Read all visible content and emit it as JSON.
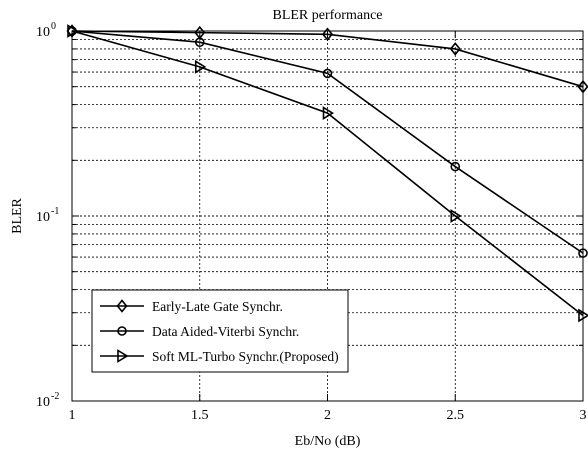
{
  "chart_data": {
    "type": "line",
    "title": "BLER performance",
    "xlabel": "Eb/No (dB)",
    "ylabel": "BLER",
    "x": [
      1,
      1.5,
      2,
      2.5,
      3
    ],
    "xticks": [
      "1",
      "1.5",
      "2",
      "2.5",
      "3"
    ],
    "xlim": [
      1,
      3
    ],
    "ylim": [
      0.01,
      1
    ],
    "yscale": "log",
    "yticks": [
      {
        "value": 0.01,
        "base": "10",
        "exp": "-2"
      },
      {
        "value": 0.1,
        "base": "10",
        "exp": "-1"
      },
      {
        "value": 1,
        "base": "10",
        "exp": "0"
      }
    ],
    "grid": true,
    "legend_position": "bottom-left",
    "series": [
      {
        "name": "Early-Late Gate Synchr.",
        "marker": "diamond",
        "values": [
          1.0,
          0.98,
          0.96,
          0.8,
          0.5
        ]
      },
      {
        "name": "Data Aided-Viterbi Synchr.",
        "marker": "circle",
        "values": [
          1.0,
          0.87,
          0.59,
          0.185,
          0.063
        ]
      },
      {
        "name": "Soft ML-Turbo Synchr.(Proposed)",
        "marker": "triangle-right",
        "values": [
          1.0,
          0.64,
          0.36,
          0.1,
          0.029
        ]
      }
    ],
    "line_color": "#000000"
  }
}
